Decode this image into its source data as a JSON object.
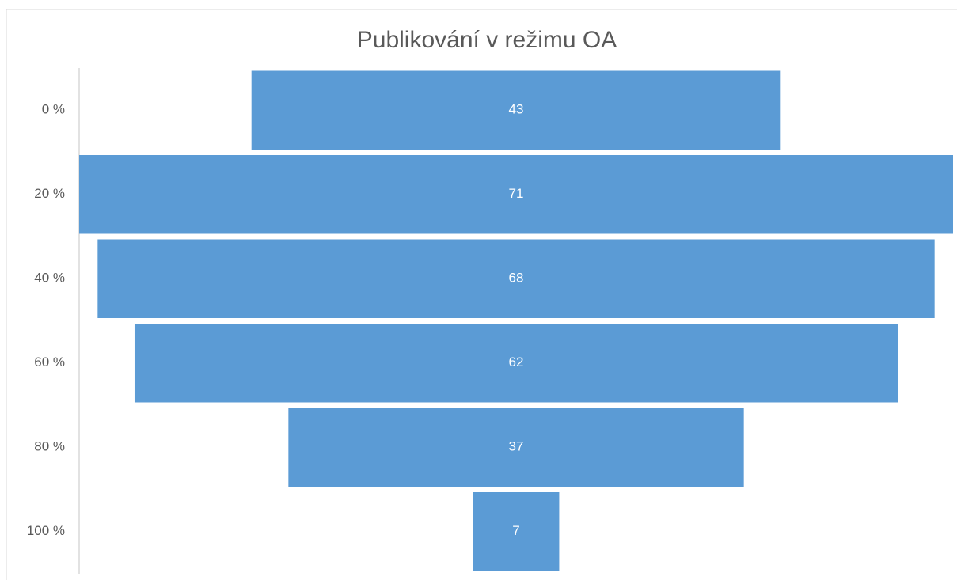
{
  "chart_data": {
    "type": "funnel",
    "title": "Publikování v režimu OA",
    "categories": [
      "0 %",
      "20 %",
      "40 %",
      "60 %",
      "80 %",
      "100 %"
    ],
    "values": [
      43,
      71,
      68,
      62,
      37,
      7
    ],
    "color": "#5b9bd5"
  }
}
